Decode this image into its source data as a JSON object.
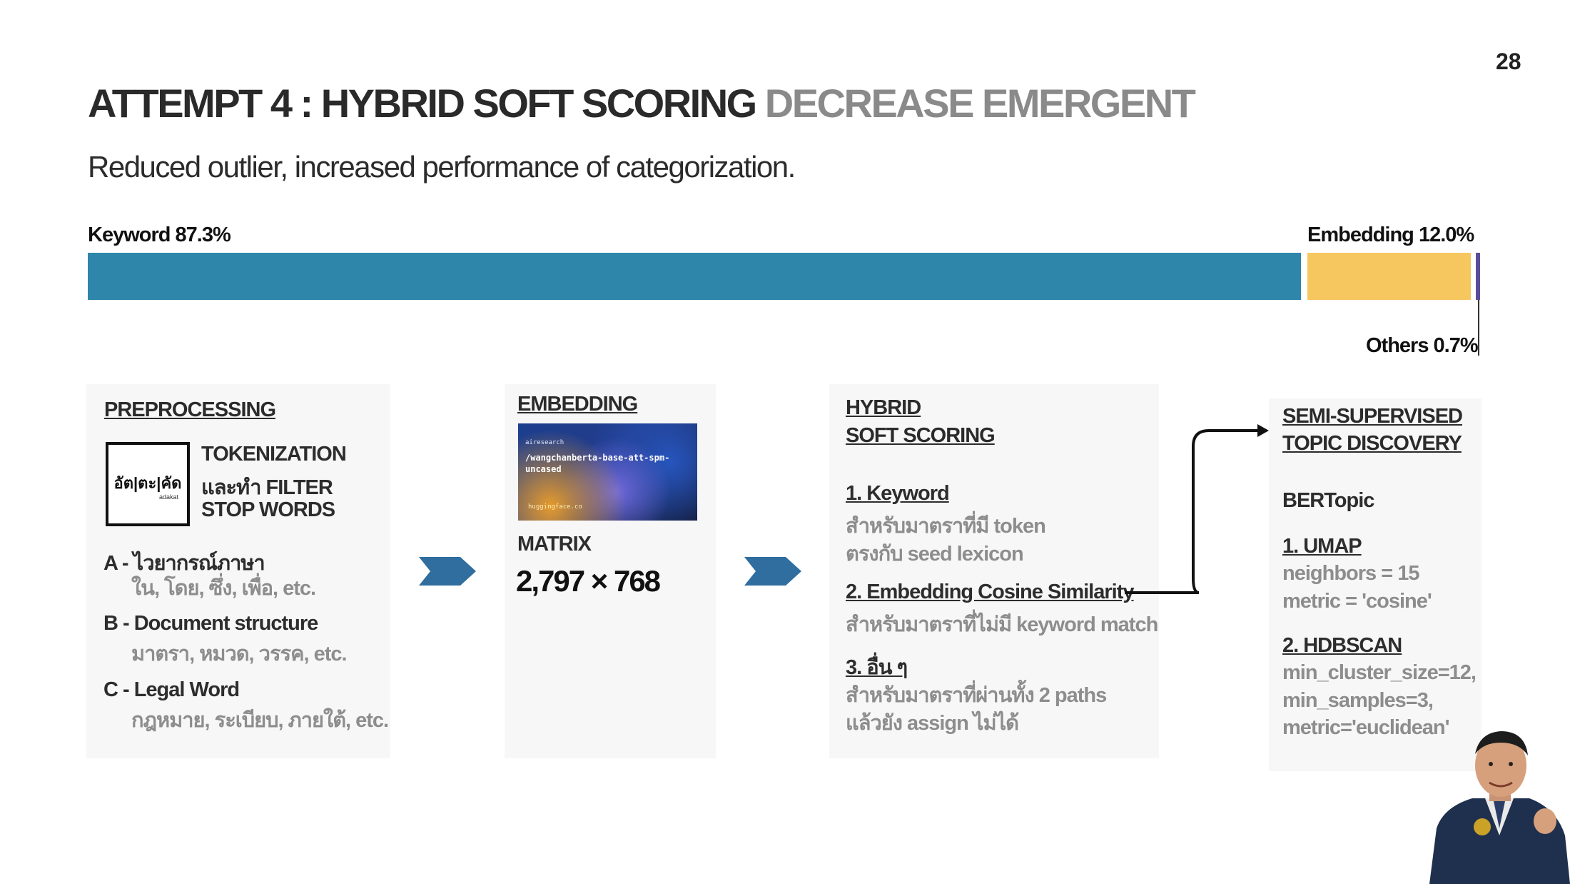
{
  "page_number": "28",
  "title": {
    "main": "ATTEMPT 4 : HYBRID SOFT SCORING",
    "muted": "DECREASE EMERGENT"
  },
  "subtitle": "Reduced outlier, increased  performance of categorization.",
  "distribution": {
    "segments": [
      {
        "label": "Keyword 87.3%",
        "value": 87.3,
        "color": "#2e86ab"
      },
      {
        "label": "Embedding 12.0%",
        "value": 12.0,
        "color": "#f6c75f"
      },
      {
        "label": "Others 0.7%",
        "value": 0.7,
        "color": "#5b4c9a"
      }
    ]
  },
  "preprocessing": {
    "heading": "PREPROCESSING",
    "logo_main": "อัต|ตะ|คัด",
    "logo_sub": "adakat",
    "tokenize_lines": [
      "TOKENIZATION",
      "และทำ FILTER",
      "STOP WORDS"
    ],
    "items": [
      {
        "title": "A - ไวยากรณ์ภาษา",
        "detail": "ใน, โดย, ซึ่ง, เพื่อ, etc."
      },
      {
        "title": "B - Document structure",
        "detail": "มาตรา, หมวด, วรรค, etc."
      },
      {
        "title": "C - Legal Word",
        "detail": "กฎหมาย, ระเบียบ, ภายใต้, etc."
      }
    ]
  },
  "embedding": {
    "heading": "EMBEDDING",
    "thumb_org": "airesearch",
    "thumb_repo": "/wangchanberta-base-att-spm-uncased",
    "thumb_site": "huggingface.co",
    "matrix_label": "MATRIX",
    "matrix_value": "2,797 × 768"
  },
  "hybrid": {
    "heading_lines": [
      "HYBRID ",
      "SOFT SCORING"
    ],
    "items": [
      {
        "title": "1. Keyword",
        "lines": [
          "สำหรับมาตราที่มี token",
          "ตรงกับ seed lexicon"
        ]
      },
      {
        "title": "2. Embedding Cosine Similarity",
        "lines": [
          "สำหรับมาตราที่ไม่มี keyword match"
        ]
      },
      {
        "title": "3. อื่น ๆ",
        "lines": [
          "สำหรับมาตราที่ผ่านทั้ง 2 paths",
          "แล้วยัง assign ไม่ได้"
        ]
      }
    ]
  },
  "semi": {
    "heading_lines": [
      "SEMI-SUPERVISED",
      "TOPIC DISCOVERY"
    ],
    "model": "BERTopic",
    "umap": {
      "title": "1. UMAP",
      "lines": [
        "neighbors = 15",
        "metric = 'cosine'"
      ]
    },
    "hdbscan": {
      "title": "2. HDBSCAN",
      "lines": [
        "min_cluster_size=12,",
        "min_samples=3,",
        "metric='euclidean'"
      ]
    }
  },
  "icons": {
    "flow_arrow": "chevron-right-icon",
    "connector": "curved-arrow-icon",
    "presenter": "person-photo"
  }
}
